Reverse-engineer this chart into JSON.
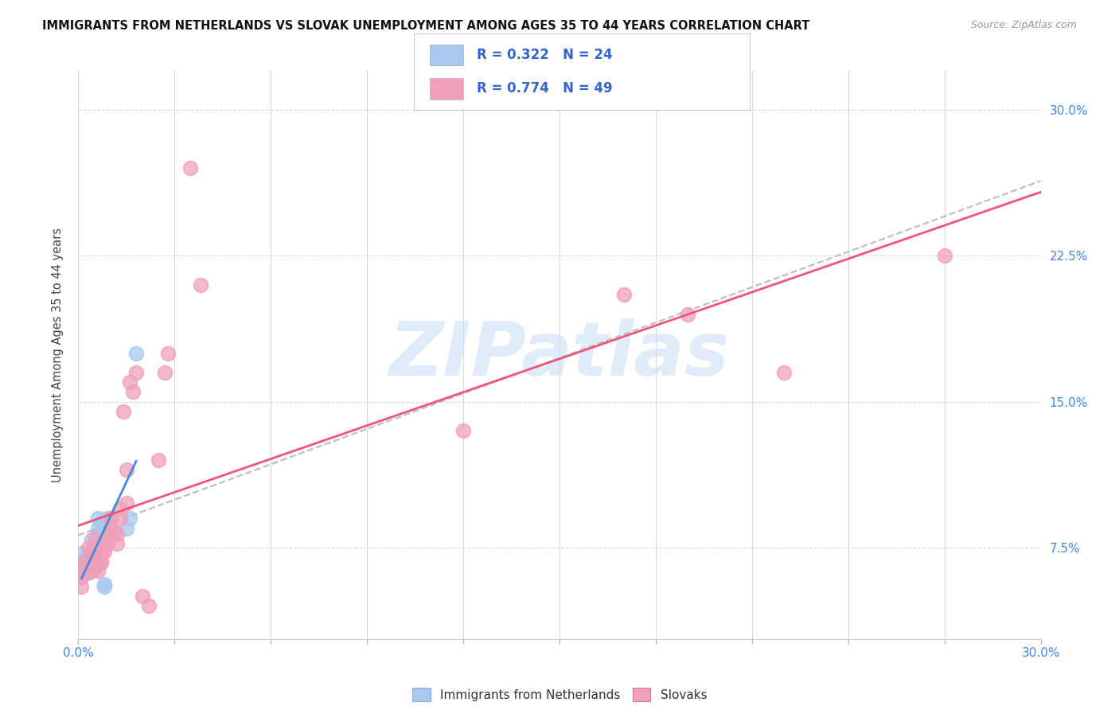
{
  "title": "IMMIGRANTS FROM NETHERLANDS VS SLOVAK UNEMPLOYMENT AMONG AGES 35 TO 44 YEARS CORRELATION CHART",
  "source": "Source: ZipAtlas.com",
  "ylabel_label": "Unemployment Among Ages 35 to 44 years",
  "legend_label_1": "Immigrants from Netherlands",
  "legend_label_2": "Slovaks",
  "R1": 0.322,
  "N1": 24,
  "R2": 0.774,
  "N2": 49,
  "color1": "#a8c8f0",
  "color2": "#f0a0b8",
  "trendline1_color": "#4488dd",
  "trendline2_color": "#ee5577",
  "watermark_text": "ZIPatlas",
  "watermark_color": "#cce0f5",
  "xlim": [
    0.0,
    0.3
  ],
  "ylim": [
    0.028,
    0.32
  ],
  "yticks": [
    0.075,
    0.15,
    0.225,
    0.3
  ],
  "xticks_major": [
    0.0,
    0.3
  ],
  "xticks_minor": [
    0.0,
    0.03,
    0.06,
    0.09,
    0.12,
    0.15,
    0.18,
    0.21,
    0.24,
    0.27,
    0.3
  ],
  "scatter1_x": [
    0.001,
    0.001,
    0.002,
    0.002,
    0.002,
    0.003,
    0.003,
    0.003,
    0.004,
    0.004,
    0.004,
    0.005,
    0.005,
    0.006,
    0.006,
    0.006,
    0.007,
    0.008,
    0.008,
    0.009,
    0.009,
    0.015,
    0.016,
    0.018
  ],
  "scatter1_y": [
    0.072,
    0.068,
    0.063,
    0.063,
    0.065,
    0.062,
    0.065,
    0.072,
    0.065,
    0.067,
    0.079,
    0.064,
    0.072,
    0.082,
    0.085,
    0.09,
    0.088,
    0.056,
    0.055,
    0.082,
    0.09,
    0.085,
    0.09,
    0.175
  ],
  "scatter2_x": [
    0.001,
    0.001,
    0.002,
    0.002,
    0.002,
    0.003,
    0.003,
    0.004,
    0.004,
    0.004,
    0.005,
    0.005,
    0.005,
    0.005,
    0.006,
    0.006,
    0.006,
    0.007,
    0.007,
    0.007,
    0.008,
    0.008,
    0.009,
    0.009,
    0.01,
    0.01,
    0.011,
    0.012,
    0.012,
    0.013,
    0.013,
    0.014,
    0.015,
    0.015,
    0.016,
    0.017,
    0.018,
    0.02,
    0.022,
    0.025,
    0.027,
    0.028,
    0.035,
    0.038,
    0.12,
    0.17,
    0.19,
    0.22,
    0.27
  ],
  "scatter2_y": [
    0.055,
    0.06,
    0.062,
    0.065,
    0.068,
    0.063,
    0.075,
    0.063,
    0.068,
    0.073,
    0.065,
    0.072,
    0.075,
    0.08,
    0.063,
    0.068,
    0.075,
    0.067,
    0.068,
    0.073,
    0.073,
    0.075,
    0.077,
    0.08,
    0.085,
    0.09,
    0.083,
    0.077,
    0.082,
    0.09,
    0.095,
    0.145,
    0.098,
    0.115,
    0.16,
    0.155,
    0.165,
    0.05,
    0.045,
    0.12,
    0.165,
    0.175,
    0.27,
    0.21,
    0.135,
    0.205,
    0.195,
    0.165,
    0.225
  ]
}
